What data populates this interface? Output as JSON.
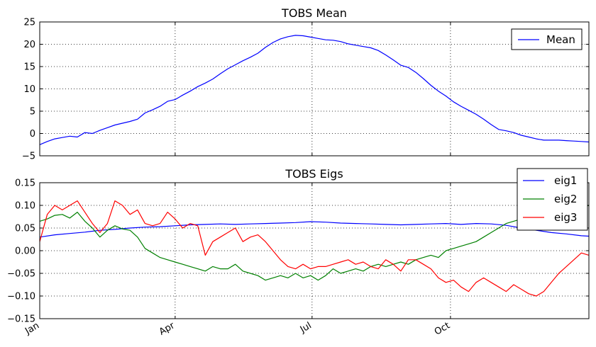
{
  "chart_data": [
    {
      "type": "line",
      "title": "TOBS Mean",
      "xlabel": "",
      "ylabel": "",
      "xlim": [
        0,
        365
      ],
      "ylim": [
        -5,
        25
      ],
      "yticks": [
        -5,
        0,
        5,
        10,
        15,
        20,
        25
      ],
      "ytick_labels": [
        "−5",
        "0",
        "5",
        "10",
        "15",
        "20",
        "25"
      ],
      "xticks": [
        0,
        90,
        181,
        273
      ],
      "grid": true,
      "legend": "top-right",
      "series": [
        {
          "name": "Mean",
          "color": "#0000ff",
          "x": [
            0,
            5,
            10,
            15,
            20,
            25,
            30,
            35,
            40,
            45,
            50,
            55,
            60,
            65,
            70,
            75,
            80,
            85,
            90,
            95,
            100,
            105,
            110,
            115,
            120,
            125,
            130,
            135,
            140,
            145,
            150,
            155,
            160,
            165,
            170,
            175,
            180,
            185,
            190,
            195,
            200,
            205,
            210,
            215,
            220,
            225,
            230,
            235,
            240,
            245,
            250,
            255,
            260,
            265,
            270,
            275,
            280,
            285,
            290,
            295,
            300,
            305,
            310,
            315,
            320,
            325,
            330,
            335,
            340,
            345,
            350,
            355,
            360,
            365
          ],
          "y": [
            -2.5,
            -1.8,
            -1.2,
            -0.9,
            -0.6,
            -0.8,
            0.2,
            0.0,
            0.7,
            1.3,
            1.9,
            2.3,
            2.7,
            3.2,
            4.6,
            5.3,
            6.1,
            7.2,
            7.6,
            8.6,
            9.5,
            10.5,
            11.3,
            12.2,
            13.4,
            14.5,
            15.4,
            16.3,
            17.1,
            18.0,
            19.3,
            20.4,
            21.2,
            21.7,
            22.0,
            21.9,
            21.6,
            21.3,
            21.0,
            20.9,
            20.6,
            20.1,
            19.8,
            19.5,
            19.2,
            18.6,
            17.6,
            16.5,
            15.3,
            14.8,
            13.7,
            12.3,
            10.8,
            9.5,
            8.4,
            7.1,
            6.1,
            5.2,
            4.3,
            3.2,
            2.0,
            0.9,
            0.6,
            0.2,
            -0.4,
            -0.8,
            -1.2,
            -1.5,
            -1.5,
            -1.5,
            -1.6,
            -1.7,
            -1.8,
            -1.9
          ]
        }
      ]
    },
    {
      "type": "line",
      "title": "TOBS Eigs",
      "xlabel": "",
      "ylabel": "",
      "xlim": [
        0,
        365
      ],
      "ylim": [
        -0.15,
        0.15
      ],
      "yticks": [
        -0.15,
        -0.1,
        -0.05,
        0.0,
        0.05,
        0.1,
        0.15
      ],
      "ytick_labels": [
        "−0.15",
        "−0.10",
        "−0.05",
        "0.00",
        "0.05",
        "0.10",
        "0.15"
      ],
      "xticks": [
        0,
        90,
        181,
        273
      ],
      "xtick_labels": [
        "Jan",
        "Apr",
        "Jul",
        "Oct"
      ],
      "grid": true,
      "legend": "top-right",
      "series": [
        {
          "name": "eig1",
          "color": "#0000ff",
          "x": [
            0,
            10,
            20,
            30,
            40,
            50,
            60,
            70,
            80,
            90,
            100,
            110,
            120,
            130,
            140,
            150,
            160,
            170,
            180,
            190,
            200,
            210,
            220,
            230,
            240,
            250,
            260,
            270,
            280,
            290,
            300,
            310,
            320,
            330,
            340,
            350,
            360,
            365
          ],
          "y": [
            0.03,
            0.035,
            0.038,
            0.041,
            0.045,
            0.047,
            0.05,
            0.052,
            0.053,
            0.055,
            0.057,
            0.058,
            0.059,
            0.058,
            0.059,
            0.06,
            0.061,
            0.062,
            0.064,
            0.063,
            0.061,
            0.06,
            0.059,
            0.058,
            0.057,
            0.058,
            0.059,
            0.06,
            0.058,
            0.06,
            0.059,
            0.056,
            0.05,
            0.045,
            0.04,
            0.037,
            0.033,
            0.032
          ]
        },
        {
          "name": "eig2",
          "color": "#008000",
          "x": [
            0,
            5,
            10,
            15,
            20,
            25,
            30,
            35,
            40,
            45,
            50,
            55,
            60,
            65,
            70,
            75,
            80,
            85,
            90,
            95,
            100,
            105,
            110,
            115,
            120,
            125,
            130,
            135,
            140,
            145,
            150,
            155,
            160,
            165,
            170,
            175,
            180,
            185,
            190,
            195,
            200,
            205,
            210,
            215,
            220,
            225,
            230,
            235,
            240,
            245,
            250,
            255,
            260,
            265,
            270,
            275,
            280,
            285,
            290,
            295,
            300,
            305,
            310,
            315,
            320,
            325,
            330,
            335,
            340,
            345,
            350,
            355,
            360,
            365
          ],
          "y": [
            0.065,
            0.07,
            0.078,
            0.08,
            0.072,
            0.085,
            0.065,
            0.05,
            0.03,
            0.045,
            0.055,
            0.048,
            0.045,
            0.03,
            0.005,
            -0.005,
            -0.015,
            -0.02,
            -0.025,
            -0.03,
            -0.035,
            -0.04,
            -0.045,
            -0.035,
            -0.04,
            -0.04,
            -0.03,
            -0.045,
            -0.05,
            -0.055,
            -0.065,
            -0.06,
            -0.055,
            -0.06,
            -0.05,
            -0.06,
            -0.055,
            -0.065,
            -0.055,
            -0.04,
            -0.05,
            -0.045,
            -0.04,
            -0.045,
            -0.035,
            -0.03,
            -0.035,
            -0.03,
            -0.025,
            -0.03,
            -0.02,
            -0.015,
            -0.01,
            -0.015,
            0.0,
            0.005,
            0.01,
            0.015,
            0.02,
            0.03,
            0.04,
            0.05,
            0.06,
            0.065,
            0.07,
            0.075,
            0.08,
            0.085,
            0.09,
            0.085,
            0.09,
            0.09,
            0.095,
            0.1
          ]
        },
        {
          "name": "eig3",
          "color": "#ff0000",
          "x": [
            0,
            5,
            10,
            15,
            20,
            25,
            30,
            35,
            40,
            45,
            50,
            55,
            60,
            65,
            70,
            75,
            80,
            85,
            90,
            95,
            100,
            105,
            110,
            115,
            120,
            125,
            130,
            135,
            140,
            145,
            150,
            155,
            160,
            165,
            170,
            175,
            180,
            185,
            190,
            195,
            200,
            205,
            210,
            215,
            220,
            225,
            230,
            235,
            240,
            245,
            250,
            255,
            260,
            265,
            270,
            275,
            280,
            285,
            290,
            295,
            300,
            305,
            310,
            315,
            320,
            325,
            330,
            335,
            340,
            345,
            350,
            355,
            360,
            365
          ],
          "y": [
            0.02,
            0.08,
            0.1,
            0.09,
            0.1,
            0.11,
            0.085,
            0.06,
            0.04,
            0.06,
            0.11,
            0.1,
            0.08,
            0.09,
            0.06,
            0.055,
            0.06,
            0.085,
            0.07,
            0.05,
            0.06,
            0.055,
            -0.01,
            0.02,
            0.03,
            0.04,
            0.05,
            0.02,
            0.03,
            0.035,
            0.02,
            0.0,
            -0.02,
            -0.035,
            -0.04,
            -0.03,
            -0.04,
            -0.035,
            -0.035,
            -0.03,
            -0.025,
            -0.02,
            -0.03,
            -0.025,
            -0.035,
            -0.04,
            -0.02,
            -0.03,
            -0.045,
            -0.02,
            -0.02,
            -0.03,
            -0.04,
            -0.06,
            -0.07,
            -0.065,
            -0.08,
            -0.09,
            -0.07,
            -0.06,
            -0.07,
            -0.08,
            -0.09,
            -0.075,
            -0.085,
            -0.095,
            -0.1,
            -0.09,
            -0.07,
            -0.05,
            -0.035,
            -0.02,
            -0.005,
            -0.01
          ]
        }
      ]
    }
  ]
}
